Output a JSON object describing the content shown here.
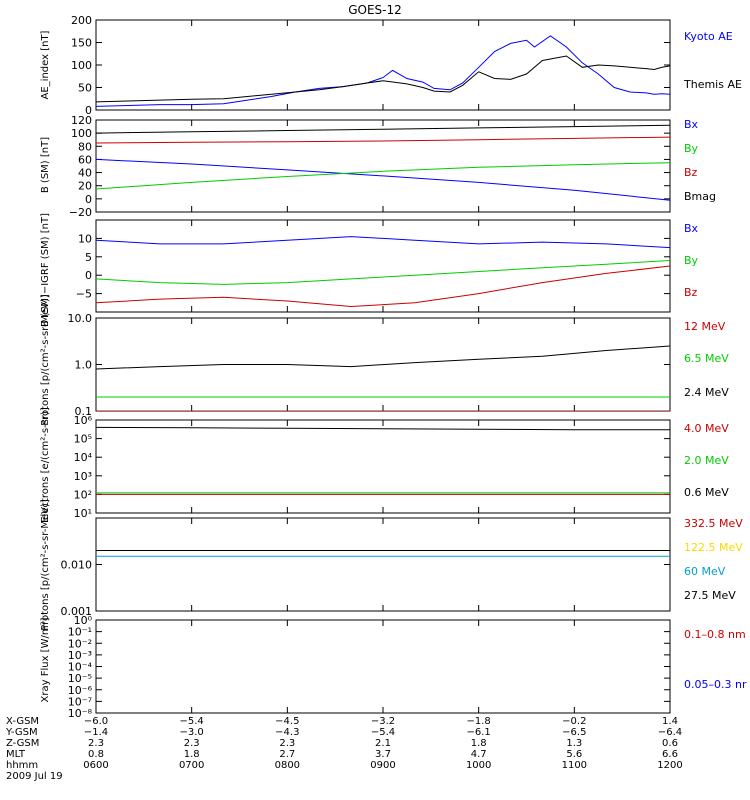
{
  "title": "GOES-12",
  "chart_data": [
    {
      "type": "line",
      "ylabel": "AE_index [nT]",
      "ylim": [
        0,
        200
      ],
      "ticks": [
        0,
        50,
        100,
        150,
        200
      ],
      "tick_labels": [
        "0",
        "50",
        "100",
        "150",
        "200"
      ],
      "xlim": [
        0,
        360
      ],
      "series": [
        {
          "name": "Kyoto AE",
          "color": "#0000ff",
          "x": [
            0,
            20,
            40,
            60,
            80,
            95,
            110,
            125,
            140,
            155,
            170,
            180,
            186,
            195,
            205,
            212,
            222,
            230,
            240,
            250,
            260,
            270,
            275,
            285,
            295,
            305,
            315,
            325,
            335,
            345,
            350,
            355,
            360
          ],
          "y": [
            8,
            10,
            12,
            12,
            14,
            22,
            30,
            40,
            48,
            52,
            60,
            72,
            88,
            70,
            62,
            48,
            45,
            60,
            95,
            130,
            148,
            155,
            140,
            165,
            140,
            105,
            80,
            50,
            40,
            38,
            35,
            36,
            35
          ]
        },
        {
          "name": "Themis AE",
          "color": "#000000",
          "x": [
            0,
            20,
            40,
            60,
            80,
            95,
            110,
            125,
            140,
            155,
            170,
            180,
            195,
            205,
            212,
            222,
            230,
            240,
            250,
            260,
            270,
            280,
            295,
            305,
            315,
            325,
            335,
            345,
            350,
            355,
            360
          ],
          "y": [
            18,
            20,
            22,
            24,
            25,
            30,
            35,
            40,
            45,
            52,
            60,
            65,
            58,
            50,
            42,
            40,
            55,
            85,
            70,
            68,
            80,
            110,
            120,
            95,
            100,
            98,
            95,
            92,
            90,
            95,
            98
          ]
        }
      ],
      "legend_labels": [
        "Kyoto AE",
        "Themis AE"
      ]
    },
    {
      "type": "line",
      "ylabel": "B (SM) [nT]",
      "ylim": [
        -20,
        120
      ],
      "ticks": [
        -20,
        0,
        20,
        40,
        60,
        80,
        100,
        120
      ],
      "tick_labels": [
        "−20",
        "0",
        "20",
        "40",
        "60",
        "80",
        "100",
        "120"
      ],
      "xlim": [
        0,
        360
      ],
      "series": [
        {
          "name": "Bx",
          "color": "#0000ff",
          "x": [
            0,
            60,
            120,
            180,
            240,
            300,
            360
          ],
          "y": [
            60,
            53,
            44,
            35,
            25,
            13,
            -2
          ]
        },
        {
          "name": "By",
          "color": "#00cc00",
          "x": [
            0,
            60,
            120,
            180,
            240,
            300,
            360
          ],
          "y": [
            15,
            25,
            34,
            42,
            48,
            52,
            55
          ]
        },
        {
          "name": "Bz",
          "color": "#cc0000",
          "x": [
            0,
            60,
            120,
            180,
            240,
            300,
            360
          ],
          "y": [
            85,
            86,
            87,
            88,
            90,
            92,
            94
          ]
        },
        {
          "name": "Bmag",
          "color": "#000000",
          "x": [
            0,
            60,
            120,
            180,
            240,
            300,
            360
          ],
          "y": [
            100,
            102,
            104,
            106,
            108,
            110,
            112
          ]
        }
      ],
      "legend_labels": [
        "Bx",
        "By",
        "Bz",
        "Bmag"
      ]
    },
    {
      "type": "line",
      "ylabel": "B (SM)−IGRF (SM) [nT]",
      "ylim": [
        -10,
        15
      ],
      "ticks": [
        -5,
        0,
        5,
        10
      ],
      "tick_labels": [
        "−5",
        "0",
        "5",
        "10"
      ],
      "xlim": [
        0,
        360
      ],
      "series": [
        {
          "name": "Bx",
          "color": "#0000ff",
          "x": [
            0,
            40,
            80,
            120,
            160,
            200,
            240,
            280,
            320,
            360
          ],
          "y": [
            9.5,
            8.5,
            8.5,
            9.5,
            10.5,
            9.5,
            8.5,
            9.0,
            8.5,
            7.5
          ]
        },
        {
          "name": "By",
          "color": "#00cc00",
          "x": [
            0,
            40,
            80,
            120,
            160,
            200,
            240,
            280,
            320,
            360
          ],
          "y": [
            -1.0,
            -2.0,
            -2.5,
            -2.0,
            -1.0,
            0.0,
            1.0,
            2.0,
            3.0,
            4.0
          ]
        },
        {
          "name": "Bz",
          "color": "#cc0000",
          "x": [
            0,
            40,
            80,
            120,
            160,
            200,
            240,
            280,
            320,
            360
          ],
          "y": [
            -7.5,
            -6.5,
            -6.0,
            -7.0,
            -8.5,
            -7.5,
            -5.0,
            -2.0,
            0.5,
            2.5
          ]
        }
      ],
      "legend_labels": [
        "Bx",
        "By",
        "Bz"
      ]
    },
    {
      "type": "line",
      "ylabel": "Protons [p/(cm²-s-sr-MeV)]",
      "scale": "log",
      "ylim": [
        0.1,
        10
      ],
      "ticks": [
        0.1,
        1,
        10
      ],
      "tick_labels": [
        "0.1",
        "1.0",
        "10.0"
      ],
      "xlim": [
        0,
        360
      ],
      "series": [
        {
          "name": "2.4 MeV",
          "color": "#000000",
          "x": [
            0,
            40,
            80,
            120,
            160,
            200,
            240,
            280,
            320,
            360
          ],
          "y": [
            0.8,
            0.9,
            1.0,
            1.0,
            0.9,
            1.1,
            1.3,
            1.5,
            2.0,
            2.5
          ]
        },
        {
          "name": "6.5 MeV",
          "color": "#00cc00",
          "x": [
            0,
            40,
            80,
            120,
            160,
            200,
            240,
            280,
            320,
            360
          ],
          "y": [
            0.2,
            0.2,
            0.2,
            0.2,
            0.2,
            0.2,
            0.2,
            0.2,
            0.2,
            0.2
          ]
        },
        {
          "name": "12 MeV",
          "color": "#cc0000",
          "x": [
            0,
            40,
            80,
            120,
            160,
            200,
            240,
            280,
            320,
            360
          ],
          "y": [
            0.1,
            0.1,
            0.1,
            0.1,
            0.1,
            0.1,
            0.1,
            0.1,
            0.1,
            0.1
          ]
        }
      ],
      "legend_labels": [
        "12 MeV",
        "6.5 MeV",
        "2.4 MeV"
      ]
    },
    {
      "type": "line",
      "ylabel": "Electrons [e/(cm²-s-sr)]",
      "scale": "log",
      "ylim": [
        10,
        1000000
      ],
      "ticks": [
        10,
        100,
        1000,
        10000,
        100000,
        1000000
      ],
      "tick_labels": [
        "10¹",
        "10²",
        "10³",
        "10⁴",
        "10⁵",
        "10⁶"
      ],
      "xlim": [
        0,
        360
      ],
      "series": [
        {
          "name": "0.6 MeV",
          "color": "#000000",
          "x": [
            0,
            60,
            120,
            180,
            240,
            300,
            360
          ],
          "y": [
            400000,
            380000,
            360000,
            340000,
            320000,
            300000,
            300000
          ]
        },
        {
          "name": "2.0 MeV",
          "color": "#00cc00",
          "x": [
            0,
            60,
            120,
            180,
            240,
            300,
            360
          ],
          "y": [
            120,
            120,
            120,
            120,
            120,
            120,
            120
          ]
        },
        {
          "name": "4.0 MeV",
          "color": "#cc0000",
          "x": [
            0,
            60,
            120,
            180,
            240,
            300,
            360
          ],
          "y": [
            100,
            100,
            100,
            100,
            100,
            100,
            100
          ]
        }
      ],
      "legend_labels": [
        "4.0 MeV",
        "2.0 MeV",
        "0.6 MeV"
      ]
    },
    {
      "type": "line",
      "ylabel": "Protons [p/(cm²-s-sr-MeV)]",
      "scale": "log",
      "ylim": [
        0.001,
        0.1
      ],
      "ticks": [
        0.001,
        0.01
      ],
      "tick_labels": [
        "0.001",
        "0.010"
      ],
      "xlim": [
        0,
        360
      ],
      "series": [
        {
          "name": "27.5 MeV",
          "color": "#000000",
          "x": [
            0,
            60,
            120,
            180,
            240,
            300,
            360
          ],
          "y": [
            0.02,
            0.02,
            0.02,
            0.02,
            0.02,
            0.02,
            0.02
          ]
        },
        {
          "name": "60 MeV",
          "color": "#00a0d0",
          "x": [
            0,
            60,
            120,
            180,
            240,
            300,
            360
          ],
          "y": [
            0.015,
            0.015,
            0.015,
            0.015,
            0.015,
            0.015,
            0.015
          ]
        }
      ],
      "legend_labels": [
        "332.5 MeV",
        "122.5 MeV",
        "60 MeV",
        "27.5 MeV"
      ]
    },
    {
      "type": "line",
      "ylabel": "Xray Flux [W/m²]",
      "scale": "log",
      "ylim": [
        1e-08,
        1
      ],
      "ticks": [
        1e-08,
        1e-07,
        1e-06,
        1e-05,
        0.0001,
        0.001,
        0.01,
        0.1,
        1
      ],
      "tick_labels": [
        "10⁻⁸",
        "10⁻⁷",
        "10⁻⁶",
        "10⁻⁵",
        "10⁻⁴",
        "10⁻³",
        "10⁻²",
        "10⁻¹",
        "10⁰"
      ],
      "xlim": [
        0,
        360
      ],
      "series": [],
      "legend_labels": [
        "0.1–0.8 nm",
        "0.05–0.3 nr"
      ]
    }
  ],
  "legend_colors": [
    [
      "#0000ff",
      "#000000"
    ],
    [
      "#0000ff",
      "#00cc00",
      "#cc0000",
      "#000000"
    ],
    [
      "#0000ff",
      "#00cc00",
      "#cc0000"
    ],
    [
      "#cc0000",
      "#00cc00",
      "#000000"
    ],
    [
      "#cc0000",
      "#00cc00",
      "#000000"
    ],
    [
      "#cc0000",
      "#ffd700",
      "#00a0d0",
      "#000000"
    ],
    [
      "#cc0000",
      "#0000ff"
    ]
  ],
  "x_axis": {
    "row_labels": [
      "X-GSM",
      "Y-GSM",
      "Z-GSM",
      "MLT",
      "hhmm",
      "2009 Jul 19"
    ],
    "ticks": [
      {
        "minute": 0,
        "xgsm": "−6.0",
        "ygsm": "−1.4",
        "zgsm": "2.3",
        "mlt": "0.8",
        "hhmm": "0600"
      },
      {
        "minute": 60,
        "xgsm": "−5.4",
        "ygsm": "−3.0",
        "zgsm": "2.3",
        "mlt": "1.8",
        "hhmm": "0700"
      },
      {
        "minute": 120,
        "xgsm": "−4.5",
        "ygsm": "−4.3",
        "zgsm": "2.3",
        "mlt": "2.7",
        "hhmm": "0800"
      },
      {
        "minute": 180,
        "xgsm": "−3.2",
        "ygsm": "−5.4",
        "zgsm": "2.1",
        "mlt": "3.7",
        "hhmm": "0900"
      },
      {
        "minute": 240,
        "xgsm": "−1.8",
        "ygsm": "−6.1",
        "zgsm": "1.8",
        "mlt": "4.7",
        "hhmm": "1000"
      },
      {
        "minute": 300,
        "xgsm": "−0.2",
        "ygsm": "−6.5",
        "zgsm": "1.3",
        "mlt": "5.6",
        "hhmm": "1100"
      },
      {
        "minute": 360,
        "xgsm": "1.4",
        "ygsm": "−6.4",
        "zgsm": "0.6",
        "mlt": "6.6",
        "hhmm": "1200"
      }
    ]
  }
}
